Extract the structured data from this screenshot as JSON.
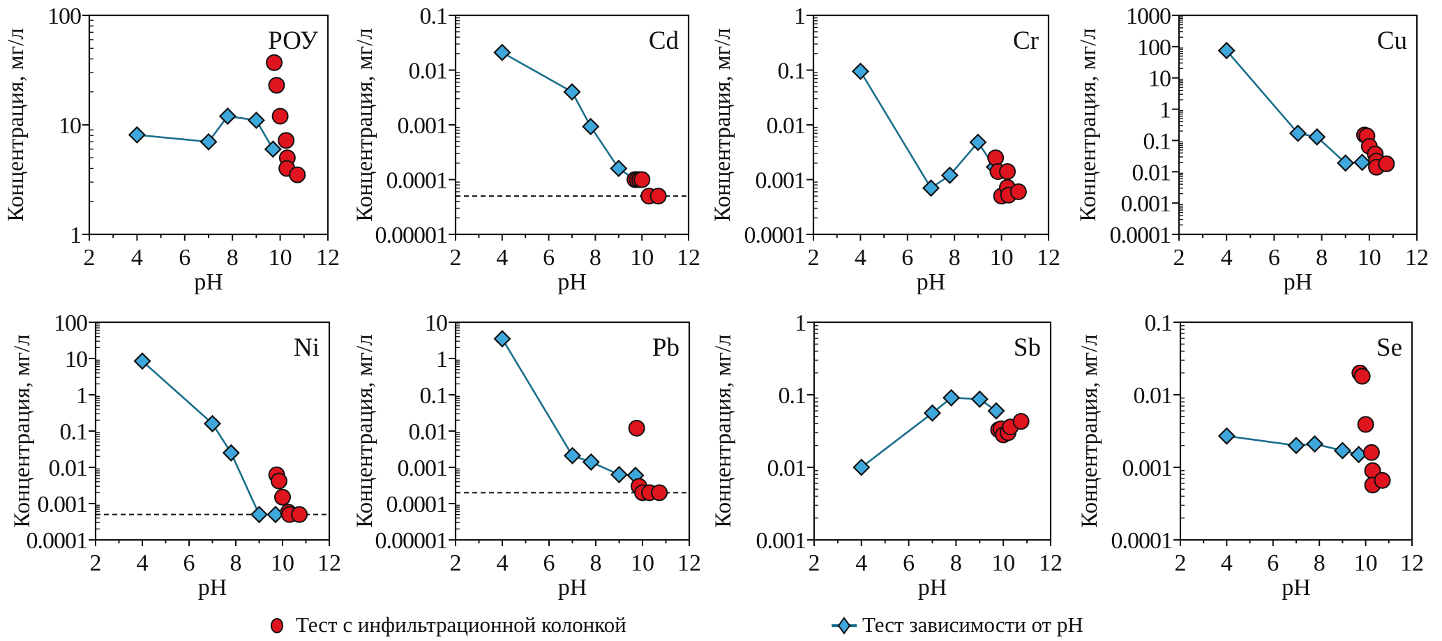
{
  "chart_data": [
    {
      "type": "scatter",
      "title": "РОУ",
      "xlabel": "pH",
      "ylabel": "Концентрация, мг/л",
      "xlim": [
        2,
        12
      ],
      "xticks": [
        "2",
        "4",
        "6",
        "8",
        "10",
        "12"
      ],
      "ylim": [
        1,
        100
      ],
      "yscale": "log",
      "yticks": [
        "1",
        "10",
        "100"
      ],
      "series": [
        {
          "name": "Тест зависимости от pH",
          "marker": "diamond",
          "line": true,
          "x": [
            4.0,
            7.0,
            7.8,
            9.0,
            9.7
          ],
          "y": [
            8.1,
            7.0,
            12.0,
            11.0,
            6.0
          ]
        },
        {
          "name": "Тест с инфильтрационной колонкой",
          "marker": "circle",
          "line": false,
          "x": [
            9.75,
            9.85,
            10.0,
            10.25,
            10.3,
            10.28,
            10.72
          ],
          "y": [
            37,
            23,
            12,
            7.2,
            5.0,
            4.0,
            3.5
          ]
        }
      ],
      "reference_line": null
    },
    {
      "type": "scatter",
      "title": "Cd",
      "xlabel": "pH",
      "ylabel": "Концентрация, мг/л",
      "xlim": [
        2,
        12
      ],
      "xticks": [
        "2",
        "4",
        "6",
        "8",
        "10",
        "12"
      ],
      "ylim": [
        1e-05,
        0.1
      ],
      "yscale": "log",
      "yticks": [
        "0.00001",
        "0.0001",
        "0.001",
        "0.01",
        "0.1"
      ],
      "series": [
        {
          "name": "Тест зависимости от pH",
          "marker": "diamond",
          "line": true,
          "x": [
            4.0,
            7.0,
            7.8,
            9.0,
            9.7
          ],
          "y": [
            0.021,
            0.004,
            0.00093,
            0.00016,
            0.0001
          ]
        },
        {
          "name": "Тест с инфильтрационной колонкой",
          "marker": "circle",
          "line": false,
          "x": [
            9.7,
            9.8,
            9.9,
            10.0,
            10.3,
            10.7
          ],
          "y": [
            0.0001,
            0.0001,
            0.0001,
            0.0001,
            5e-05,
            5e-05
          ]
        }
      ],
      "reference_line": 5e-05
    },
    {
      "type": "scatter",
      "title": "Cr",
      "xlabel": "pH",
      "ylabel": "Концентрация, мг/л",
      "xlim": [
        2,
        12
      ],
      "xticks": [
        "2",
        "4",
        "6",
        "8",
        "10",
        "12"
      ],
      "ylim": [
        0.0001,
        1
      ],
      "yscale": "log",
      "yticks": [
        "0.0001",
        "0.001",
        "0.01",
        "0.1",
        "1"
      ],
      "series": [
        {
          "name": "Тест зависимости от pH",
          "marker": "diamond",
          "line": true,
          "x": [
            4.0,
            7.0,
            7.8,
            9.0,
            9.7
          ],
          "y": [
            0.095,
            0.0007,
            0.0012,
            0.0048,
            0.0017
          ]
        },
        {
          "name": "Тест с инфильтрационной колонкой",
          "marker": "circle",
          "line": false,
          "x": [
            9.75,
            9.85,
            10.25,
            10.0,
            10.25,
            10.3,
            10.72
          ],
          "y": [
            0.0025,
            0.0014,
            0.0014,
            0.0005,
            0.00072,
            0.00052,
            0.0006
          ]
        }
      ],
      "reference_line": null
    },
    {
      "type": "scatter",
      "title": "Cu",
      "xlabel": "pH",
      "ylabel": "Концентрация, мг/л",
      "xlim": [
        2,
        12
      ],
      "xticks": [
        "2",
        "4",
        "6",
        "8",
        "10",
        "12"
      ],
      "ylim": [
        0.0001,
        1000
      ],
      "yscale": "log",
      "yticks": [
        "0.0001",
        "0.001",
        "0.01",
        "0.1",
        "1",
        "10",
        "100",
        "1000"
      ],
      "series": [
        {
          "name": "Тест зависимости от pH",
          "marker": "diamond",
          "line": true,
          "x": [
            4.0,
            7.0,
            7.8,
            9.0,
            9.7
          ],
          "y": [
            75,
            0.17,
            0.13,
            0.019,
            0.02
          ]
        },
        {
          "name": "Тест с инфильтрационной колонкой",
          "marker": "circle",
          "line": false,
          "x": [
            9.8,
            9.9,
            10.0,
            10.25,
            10.3,
            10.3,
            10.72
          ],
          "y": [
            0.15,
            0.14,
            0.065,
            0.037,
            0.022,
            0.014,
            0.018
          ]
        }
      ],
      "reference_line": null
    },
    {
      "type": "scatter",
      "title": "Ni",
      "xlabel": "pH",
      "ylabel": "Концентрация, мг/л",
      "xlim": [
        2,
        12
      ],
      "xticks": [
        "2",
        "4",
        "6",
        "8",
        "10",
        "12"
      ],
      "ylim": [
        0.0001,
        100
      ],
      "yscale": "log",
      "yticks": [
        "0.0001",
        "0.001",
        "0.01",
        "0.1",
        "1",
        "10",
        "100"
      ],
      "series": [
        {
          "name": "Тест зависимости от pH",
          "marker": "diamond",
          "line": true,
          "x": [
            4.0,
            7.0,
            7.8,
            9.0,
            9.7
          ],
          "y": [
            8.5,
            0.16,
            0.025,
            0.0005,
            0.0005
          ]
        },
        {
          "name": "Тест с инфильтрационной колонкой",
          "marker": "circle",
          "line": false,
          "x": [
            9.75,
            9.85,
            10.0,
            10.25,
            10.3,
            10.72
          ],
          "y": [
            0.0062,
            0.0042,
            0.0015,
            0.00058,
            0.0005,
            0.0005
          ]
        }
      ],
      "reference_line": 0.0005
    },
    {
      "type": "scatter",
      "title": "Pb",
      "xlabel": "pH",
      "ylabel": "Концентрация, мг/л",
      "xlim": [
        2,
        12
      ],
      "xticks": [
        "2",
        "4",
        "6",
        "8",
        "10",
        "12"
      ],
      "ylim": [
        1e-05,
        10
      ],
      "yscale": "log",
      "yticks": [
        "0.00001",
        "0.0001",
        "0.001",
        "0.01",
        "0.1",
        "1",
        "10"
      ],
      "series": [
        {
          "name": "Тест зависимости от pH",
          "marker": "diamond",
          "line": true,
          "x": [
            4.0,
            7.0,
            7.8,
            9.0,
            9.7
          ],
          "y": [
            3.5,
            0.0021,
            0.0014,
            0.00063,
            0.0006
          ]
        },
        {
          "name": "Тест с инфильтрационной колонкой",
          "marker": "circle",
          "line": false,
          "x": [
            9.75,
            9.85,
            10.0,
            10.3,
            10.72
          ],
          "y": [
            0.012,
            0.0003,
            0.0002,
            0.0002,
            0.0002
          ]
        }
      ],
      "reference_line": 0.0002
    },
    {
      "type": "scatter",
      "title": "Sb",
      "xlabel": "pH",
      "ylabel": "Концентрация, мг/л",
      "xlim": [
        2,
        12
      ],
      "xticks": [
        "2",
        "4",
        "6",
        "8",
        "10",
        "12"
      ],
      "ylim": [
        0.001,
        1
      ],
      "yscale": "log",
      "yticks": [
        "0.001",
        "0.01",
        "0.1",
        "1"
      ],
      "series": [
        {
          "name": "Тест зависимости от pH",
          "marker": "diamond",
          "line": true,
          "x": [
            4.0,
            7.0,
            7.8,
            9.0,
            9.7
          ],
          "y": [
            0.01,
            0.056,
            0.091,
            0.087,
            0.06
          ]
        },
        {
          "name": "Тест с инфильтрационной колонкой",
          "marker": "circle",
          "line": false,
          "x": [
            9.8,
            9.9,
            10.0,
            10.2,
            10.3,
            10.75
          ],
          "y": [
            0.033,
            0.034,
            0.028,
            0.03,
            0.036,
            0.043
          ]
        }
      ],
      "reference_line": null
    },
    {
      "type": "scatter",
      "title": "Se",
      "xlabel": "pH",
      "ylabel": "Концентрация, мг/л",
      "xlim": [
        2,
        12
      ],
      "xticks": [
        "2",
        "4",
        "6",
        "8",
        "10",
        "12"
      ],
      "ylim": [
        0.0001,
        0.1
      ],
      "yscale": "log",
      "yticks": [
        "0.0001",
        "0.001",
        "0.01",
        "0.1"
      ],
      "series": [
        {
          "name": "Тест зависимости от pH",
          "marker": "diamond",
          "line": true,
          "x": [
            4.0,
            7.0,
            7.8,
            9.0,
            9.7
          ],
          "y": [
            0.0027,
            0.002,
            0.0021,
            0.0017,
            0.0015
          ]
        },
        {
          "name": "Тест с инфильтрационной колонкой",
          "marker": "circle",
          "line": false,
          "x": [
            9.75,
            9.85,
            10.0,
            10.25,
            10.3,
            10.3,
            10.72
          ],
          "y": [
            0.02,
            0.018,
            0.0039,
            0.0016,
            0.0009,
            0.00057,
            0.00066
          ]
        }
      ],
      "reference_line": null
    }
  ],
  "legend": {
    "items": [
      {
        "label": "Тест с инфильтрационной колонкой",
        "marker": "circle"
      },
      {
        "label": "Тест зависимости от pH",
        "marker": "diamond"
      }
    ],
    "placement": "bottom"
  },
  "colors": {
    "circle_fill": "#e0141e",
    "diamond_fill": "#3ea8dc",
    "line": "#1a6e8c",
    "marker_stroke": "#111111",
    "axis": "#111111",
    "reference_line": "#111111"
  }
}
